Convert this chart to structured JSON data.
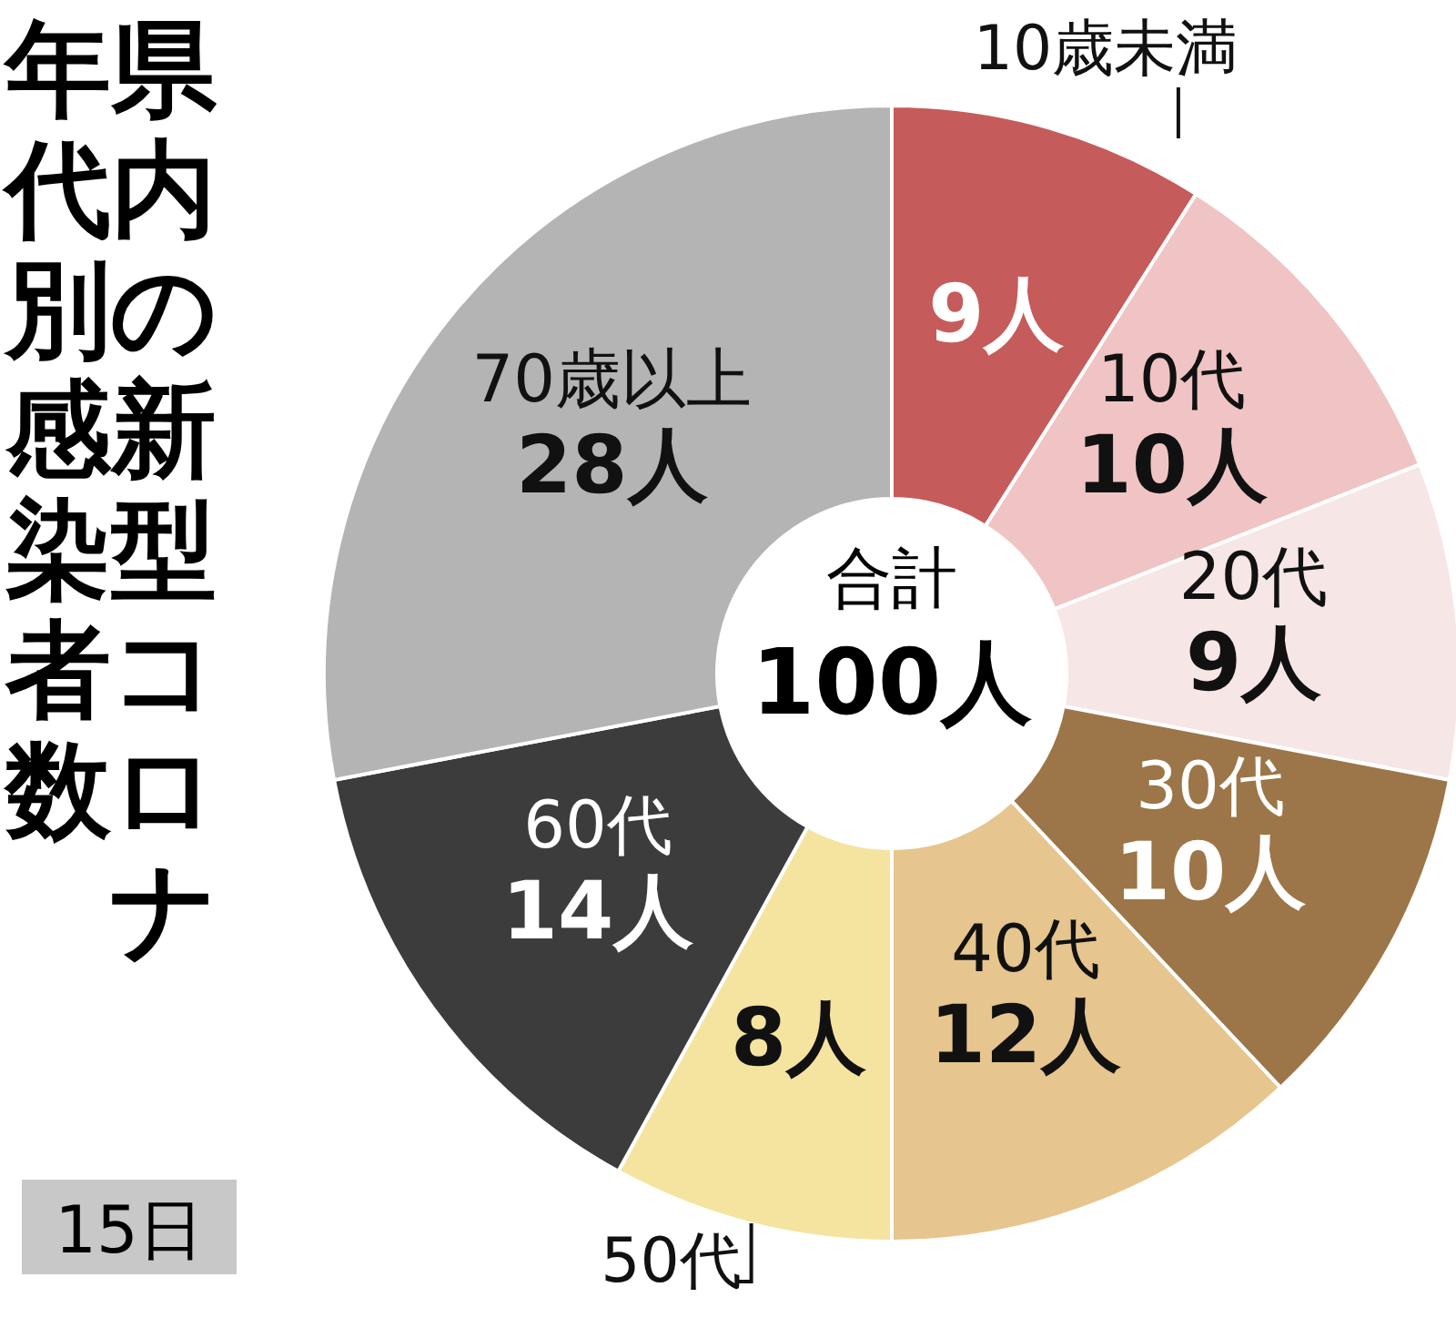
{
  "chart_data": {
    "type": "donut",
    "title": "県内の新型コロナ",
    "subtitle": "年代別感染者数",
    "categories": [
      "10歳未満",
      "10代",
      "20代",
      "30代",
      "40代",
      "50代",
      "60代",
      "70歳以上"
    ],
    "values": [
      9,
      10,
      9,
      10,
      12,
      8,
      14,
      28
    ],
    "value_labels": [
      "9人",
      "10人",
      "9人",
      "10人",
      "12人",
      "8人",
      "14人",
      "28人"
    ],
    "colors": [
      "#c65b5b",
      "#f0c4c4",
      "#f7e6e6",
      "#9c7648",
      "#e6c58e",
      "#f5e4a0",
      "#3c3c3c",
      "#b4b4b4"
    ],
    "annotations": [
      "合計",
      "100人",
      "15日"
    ]
  }
}
